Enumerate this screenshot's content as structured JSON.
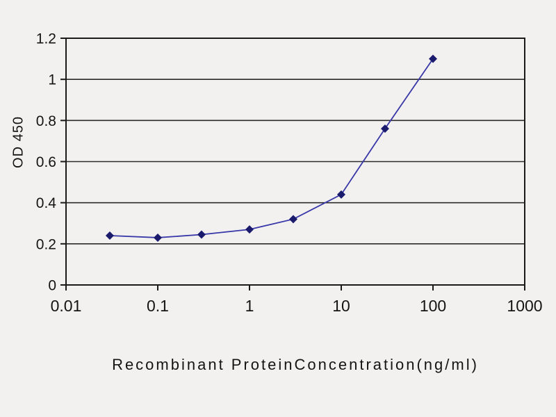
{
  "chart_data": {
    "type": "line",
    "title": "",
    "xlabel": "Recombinant ProteinConcentration(ng/ml)",
    "ylabel": "OD 450",
    "x_scale": "log",
    "xlim": [
      0.01,
      1000
    ],
    "ylim": [
      0,
      1.2
    ],
    "x_ticks": [
      0.01,
      0.1,
      1,
      10,
      100,
      1000
    ],
    "y_ticks": [
      0,
      0.2,
      0.4,
      0.6,
      0.8,
      1,
      1.2
    ],
    "grid": "horizontal",
    "legend": "none",
    "series": [
      {
        "name": "OD 450",
        "marker": "diamond",
        "color": "#3737a8",
        "marker_color": "#1b1b6e",
        "x": [
          0.03,
          0.1,
          0.3,
          1,
          3,
          10,
          30,
          100
        ],
        "y": [
          0.24,
          0.23,
          0.245,
          0.27,
          0.32,
          0.44,
          0.76,
          1.1
        ]
      }
    ]
  },
  "colors": {
    "background": "#f3f1ef",
    "axis": "#1a1a1a",
    "gridline": "#2b2b2b",
    "text": "#141414"
  }
}
